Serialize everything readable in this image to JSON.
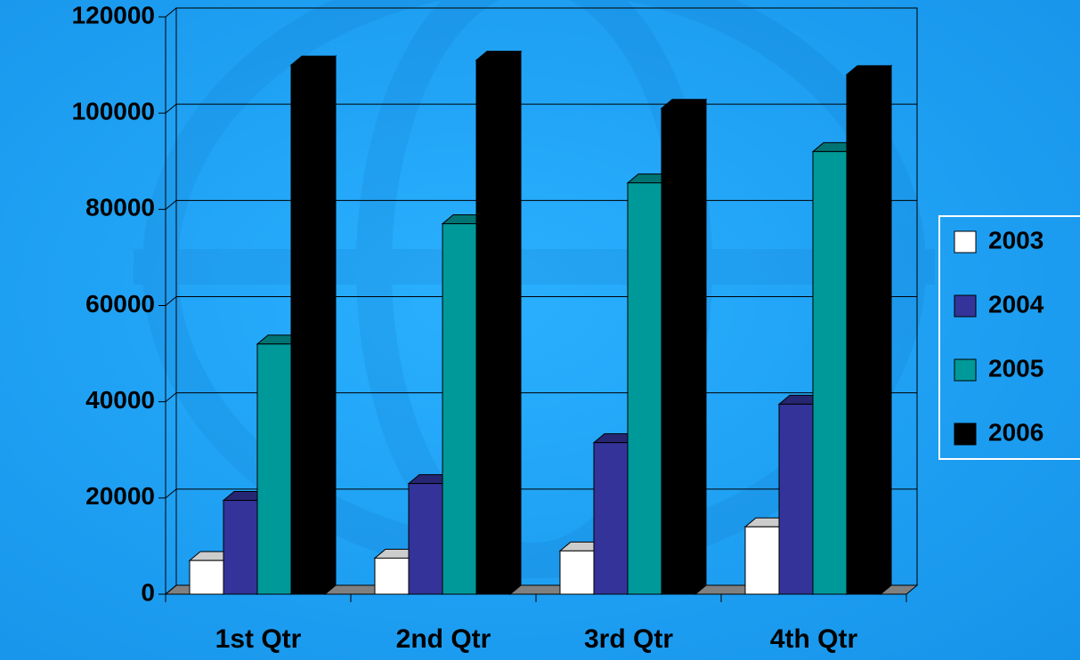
{
  "chart_data": {
    "type": "bar3d",
    "categories": [
      "1st Qtr",
      "2nd Qtr",
      "3rd Qtr",
      "4th Qtr"
    ],
    "series": [
      {
        "name": "2003",
        "color": "#ffffff",
        "values": [
          7000,
          7500,
          9000,
          14000
        ]
      },
      {
        "name": "2004",
        "color": "#333399",
        "values": [
          19500,
          23000,
          31500,
          39500
        ]
      },
      {
        "name": "2005",
        "color": "#009999",
        "values": [
          52000,
          77000,
          85500,
          92000
        ]
      },
      {
        "name": "2006",
        "color": "#000000",
        "values": [
          110000,
          111000,
          101000,
          108000
        ]
      }
    ],
    "ylim": [
      0,
      120000
    ],
    "yticks": [
      0,
      20000,
      40000,
      60000,
      80000,
      100000,
      120000
    ],
    "grid": true,
    "legend": "right"
  }
}
